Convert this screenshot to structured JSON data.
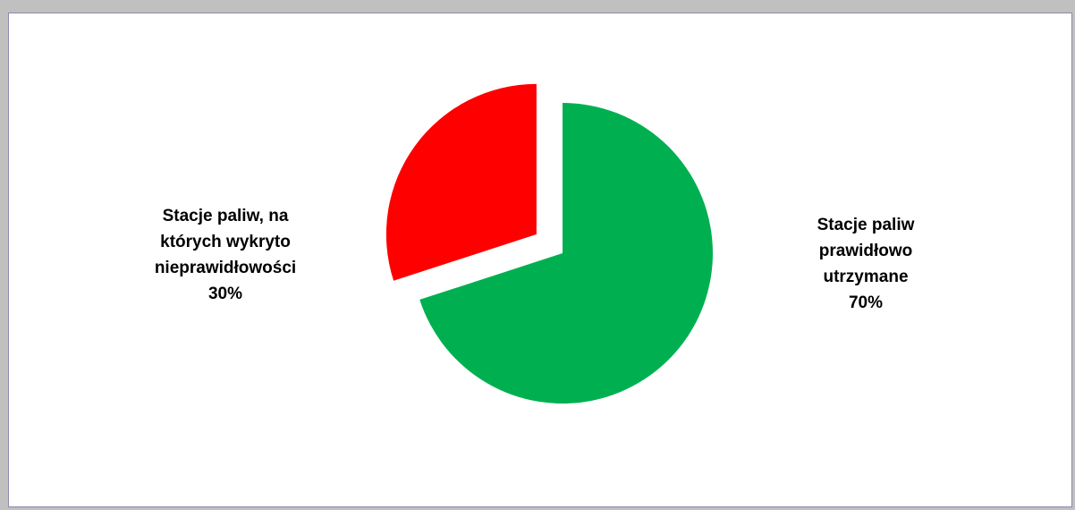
{
  "chart_data": {
    "type": "pie",
    "title": "",
    "slices": [
      {
        "label": "Stacje paliw prawidłowo utrzymane",
        "value": 70,
        "value_label": "70%",
        "color": "#00b050",
        "exploded": false
      },
      {
        "label": "Stacje paliw, na których wykryto nieprawidłowości",
        "value": 30,
        "value_label": "30%",
        "color": "#ff0000",
        "exploded": true
      }
    ],
    "legend": "none",
    "data_labels": "outside"
  },
  "labels": {
    "green_text": "Stacje paliw\nprawidłowo\nutrzymane",
    "green_pct": "70%",
    "red_text": "Stacje paliw, na\nktórych wykryto\nnieprawidłowości",
    "red_pct": "30%"
  }
}
